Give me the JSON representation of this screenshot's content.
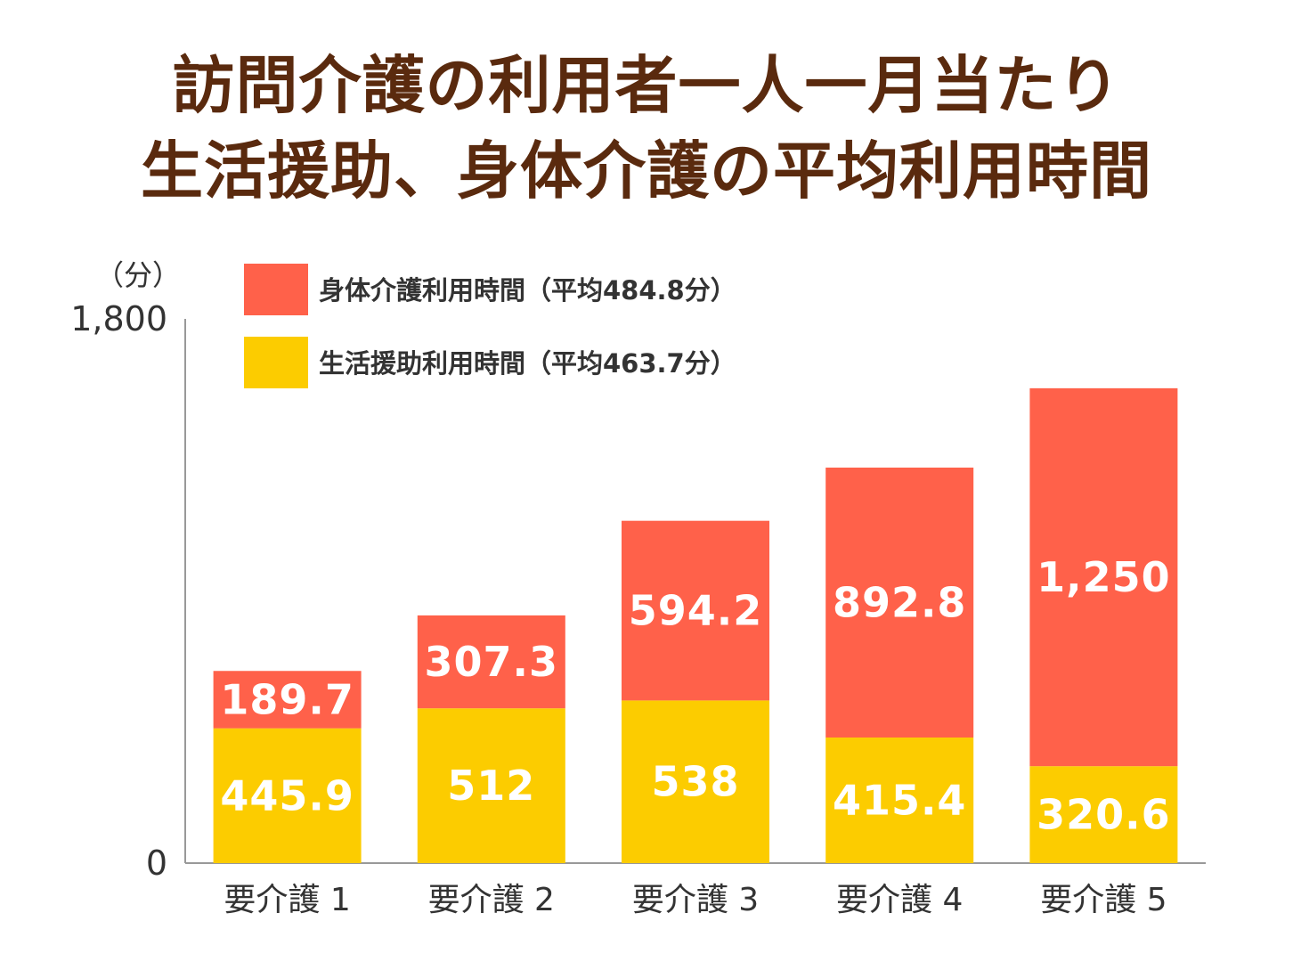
{
  "title": {
    "line1": "訪問介護の利用者一人一月当たり",
    "line2": "生活援助、身体介護の平均利用時間"
  },
  "colors": {
    "title": "#5a2a0e",
    "body_care": "#ff614a",
    "life_support": "#fccc00",
    "axis": "#999999"
  },
  "chart_data": {
    "type": "bar",
    "stacked": true,
    "unit_label": "（分）",
    "categories": [
      "要介護 1",
      "要介護 2",
      "要介護 3",
      "要介護 4",
      "要介護 5"
    ],
    "series": [
      {
        "name": "生活援助利用時間（平均463.7分）",
        "color": "#fccc00",
        "values": [
          445.9,
          512,
          538,
          415.4,
          320.6
        ],
        "labels": [
          "445.9",
          "512",
          "538",
          "415.4",
          "320.6"
        ]
      },
      {
        "name": "身体介護利用時間（平均484.8分）",
        "color": "#ff614a",
        "values": [
          189.7,
          307.3,
          594.2,
          892.8,
          1250
        ],
        "labels": [
          "189.7",
          "307.3",
          "594.2",
          "892.8",
          "1,250"
        ]
      }
    ],
    "ylim": [
      0,
      1800
    ],
    "yticks": [
      0,
      1800
    ],
    "ytick_labels": [
      "0",
      "1,800"
    ],
    "grid": false,
    "legend": "top-left"
  }
}
